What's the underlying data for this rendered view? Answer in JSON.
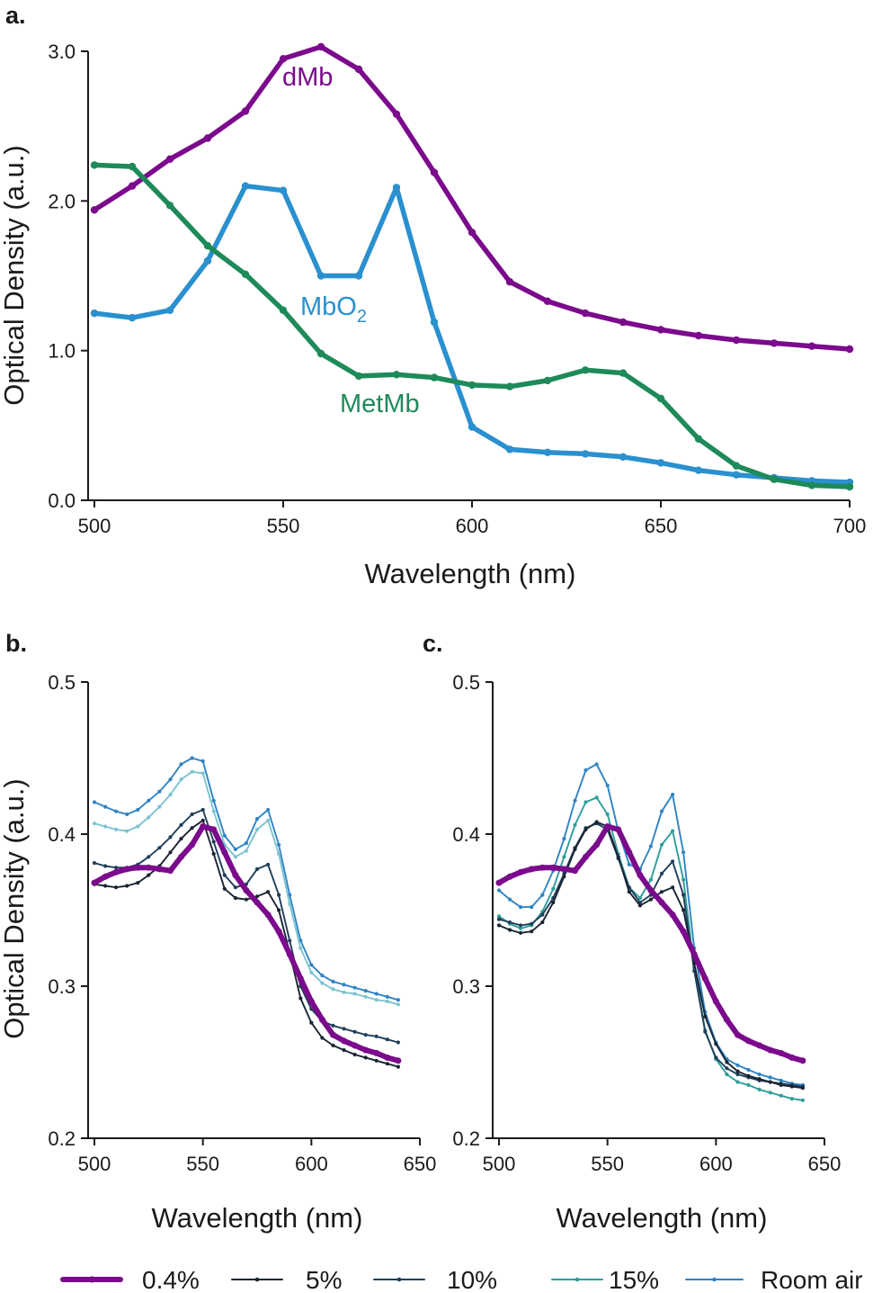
{
  "colors": {
    "dMb": "#7B0A8C",
    "MbO2": "#2A90CF",
    "MetMb": "#1E8A5A",
    "c04": "#7B0A8C",
    "c5": "#1B2433",
    "c10": "#1F3F5A",
    "c15": "#2E9E9A",
    "room": "#2F84C4",
    "c15b": "#7CC4D0"
  },
  "chart_data": [
    {
      "id": "a",
      "panel_label": "a.",
      "type": "line",
      "xlabel": "Wavelength (nm)",
      "ylabel": "Optical Density (a.u.)",
      "xlim": [
        500,
        700
      ],
      "ylim": [
        0,
        3
      ],
      "xticks": [
        "500",
        "550",
        "600",
        "650",
        "700"
      ],
      "yticks": [
        "0.0",
        "1.0",
        "2.0",
        "3.0"
      ],
      "x": [
        500,
        510,
        520,
        530,
        540,
        550,
        560,
        570,
        580,
        590,
        600,
        610,
        620,
        630,
        640,
        650,
        660,
        670,
        680,
        690,
        700
      ],
      "series": [
        {
          "name": "dMb",
          "label_text": "dMb",
          "color_key": "dMb",
          "values": [
            1.94,
            2.1,
            2.28,
            2.42,
            2.6,
            2.95,
            3.03,
            2.88,
            2.58,
            2.19,
            1.79,
            1.46,
            1.33,
            1.25,
            1.19,
            1.14,
            1.1,
            1.07,
            1.05,
            1.03,
            1.01
          ]
        },
        {
          "name": "MbO2",
          "label_text": "MbO",
          "label_sub": "2",
          "color_key": "MbO2",
          "values": [
            1.25,
            1.22,
            1.27,
            1.6,
            2.1,
            2.07,
            1.5,
            1.5,
            2.09,
            1.19,
            0.49,
            0.34,
            0.32,
            0.31,
            0.29,
            0.25,
            0.2,
            0.17,
            0.15,
            0.13,
            0.12
          ]
        },
        {
          "name": "MetMb",
          "label_text": "MetMb",
          "color_key": "MetMb",
          "values": [
            2.24,
            2.23,
            1.97,
            1.7,
            1.51,
            1.27,
            0.98,
            0.83,
            0.84,
            0.82,
            0.77,
            0.76,
            0.8,
            0.87,
            0.85,
            0.68,
            0.41,
            0.23,
            0.14,
            0.1,
            0.09
          ]
        }
      ]
    },
    {
      "id": "b",
      "panel_label": "b.",
      "type": "line",
      "xlabel": "Wavelength (nm)",
      "ylabel": "Optical Density (a.u.)",
      "xlim": [
        500,
        650
      ],
      "ylim": [
        0.2,
        0.5
      ],
      "xticks": [
        "500",
        "550",
        "600",
        "650"
      ],
      "yticks": [
        "0.2",
        "0.3",
        "0.4",
        "0.5"
      ],
      "x": [
        500,
        505,
        510,
        515,
        520,
        525,
        530,
        535,
        540,
        545,
        550,
        555,
        560,
        565,
        570,
        575,
        580,
        585,
        590,
        595,
        600,
        605,
        610,
        615,
        620,
        625,
        630,
        635,
        640
      ],
      "series": [
        {
          "name": "Room air",
          "color_key": "room",
          "values": [
            0.421,
            0.418,
            0.415,
            0.413,
            0.416,
            0.422,
            0.428,
            0.436,
            0.446,
            0.45,
            0.448,
            0.422,
            0.399,
            0.39,
            0.394,
            0.41,
            0.416,
            0.393,
            0.36,
            0.33,
            0.314,
            0.307,
            0.303,
            0.301,
            0.299,
            0.297,
            0.295,
            0.293,
            0.291
          ]
        },
        {
          "name": "15%",
          "color_key": "c15b",
          "values": [
            0.407,
            0.405,
            0.403,
            0.402,
            0.405,
            0.411,
            0.418,
            0.426,
            0.436,
            0.441,
            0.44,
            0.415,
            0.393,
            0.385,
            0.389,
            0.403,
            0.409,
            0.387,
            0.354,
            0.325,
            0.309,
            0.302,
            0.298,
            0.296,
            0.295,
            0.293,
            0.291,
            0.29,
            0.288
          ]
        },
        {
          "name": "10%",
          "color_key": "c10",
          "values": [
            0.381,
            0.379,
            0.378,
            0.378,
            0.38,
            0.385,
            0.391,
            0.398,
            0.406,
            0.413,
            0.416,
            0.395,
            0.373,
            0.365,
            0.367,
            0.377,
            0.38,
            0.36,
            0.33,
            0.3,
            0.285,
            0.277,
            0.274,
            0.272,
            0.27,
            0.268,
            0.267,
            0.265,
            0.263
          ]
        },
        {
          "name": "5%",
          "color_key": "c5",
          "values": [
            0.367,
            0.366,
            0.365,
            0.366,
            0.368,
            0.373,
            0.379,
            0.388,
            0.397,
            0.404,
            0.409,
            0.387,
            0.364,
            0.358,
            0.357,
            0.359,
            0.362,
            0.35,
            0.322,
            0.292,
            0.276,
            0.266,
            0.261,
            0.258,
            0.255,
            0.253,
            0.251,
            0.249,
            0.247
          ]
        },
        {
          "name": "0.4%",
          "color_key": "c04",
          "values": [
            0.368,
            0.372,
            0.375,
            0.377,
            0.378,
            0.378,
            0.377,
            0.376,
            0.385,
            0.393,
            0.405,
            0.403,
            0.388,
            0.373,
            0.363,
            0.355,
            0.347,
            0.336,
            0.321,
            0.305,
            0.29,
            0.278,
            0.268,
            0.264,
            0.261,
            0.258,
            0.256,
            0.253,
            0.251
          ]
        }
      ]
    },
    {
      "id": "c",
      "panel_label": "c.",
      "type": "line",
      "xlabel": "Wavelength (nm)",
      "ylabel": "",
      "xlim": [
        500,
        650
      ],
      "ylim": [
        0.2,
        0.5
      ],
      "xticks": [
        "500",
        "550",
        "600",
        "650"
      ],
      "yticks": [
        "0.2",
        "0.3",
        "0.4",
        "0.5"
      ],
      "x": [
        500,
        505,
        510,
        515,
        520,
        525,
        530,
        535,
        540,
        545,
        550,
        555,
        560,
        565,
        570,
        575,
        580,
        585,
        590,
        595,
        600,
        605,
        610,
        615,
        620,
        625,
        630,
        635,
        640
      ],
      "series": [
        {
          "name": "Room air",
          "color_key": "room",
          "values": [
            0.363,
            0.357,
            0.352,
            0.352,
            0.36,
            0.376,
            0.397,
            0.422,
            0.442,
            0.446,
            0.432,
            0.402,
            0.38,
            0.377,
            0.392,
            0.415,
            0.426,
            0.388,
            0.325,
            0.283,
            0.263,
            0.252,
            0.248,
            0.245,
            0.242,
            0.24,
            0.238,
            0.236,
            0.235
          ]
        },
        {
          "name": "15%",
          "color_key": "c15",
          "values": [
            0.346,
            0.341,
            0.338,
            0.34,
            0.349,
            0.364,
            0.385,
            0.406,
            0.421,
            0.424,
            0.413,
            0.387,
            0.365,
            0.358,
            0.37,
            0.393,
            0.402,
            0.37,
            0.312,
            0.271,
            0.252,
            0.242,
            0.237,
            0.235,
            0.232,
            0.23,
            0.228,
            0.226,
            0.225
          ]
        },
        {
          "name": "10%",
          "color_key": "c10",
          "values": [
            0.344,
            0.342,
            0.34,
            0.341,
            0.347,
            0.358,
            0.374,
            0.391,
            0.404,
            0.407,
            0.403,
            0.384,
            0.365,
            0.355,
            0.36,
            0.374,
            0.382,
            0.36,
            0.31,
            0.27,
            0.253,
            0.246,
            0.242,
            0.24,
            0.238,
            0.237,
            0.236,
            0.235,
            0.234
          ]
        },
        {
          "name": "5%",
          "color_key": "c5",
          "values": [
            0.34,
            0.337,
            0.335,
            0.336,
            0.342,
            0.355,
            0.372,
            0.39,
            0.403,
            0.408,
            0.405,
            0.385,
            0.362,
            0.353,
            0.357,
            0.362,
            0.365,
            0.35,
            0.315,
            0.28,
            0.262,
            0.25,
            0.244,
            0.241,
            0.239,
            0.237,
            0.235,
            0.234,
            0.233
          ]
        },
        {
          "name": "0.4%",
          "color_key": "c04",
          "values": [
            0.368,
            0.372,
            0.375,
            0.377,
            0.378,
            0.378,
            0.377,
            0.376,
            0.385,
            0.393,
            0.405,
            0.403,
            0.388,
            0.373,
            0.363,
            0.355,
            0.347,
            0.336,
            0.321,
            0.305,
            0.29,
            0.278,
            0.268,
            0.264,
            0.261,
            0.258,
            0.256,
            0.253,
            0.251
          ]
        }
      ]
    }
  ],
  "legend": [
    {
      "name": "0.4%",
      "color_key": "c04",
      "thick": true
    },
    {
      "name": "5%",
      "color_key": "c5",
      "thick": false
    },
    {
      "name": "10%",
      "color_key": "c10",
      "thick": false
    },
    {
      "name": "15%",
      "color_key": "c15",
      "thick": false
    },
    {
      "name": "Room air",
      "color_key": "room",
      "thick": false
    }
  ]
}
